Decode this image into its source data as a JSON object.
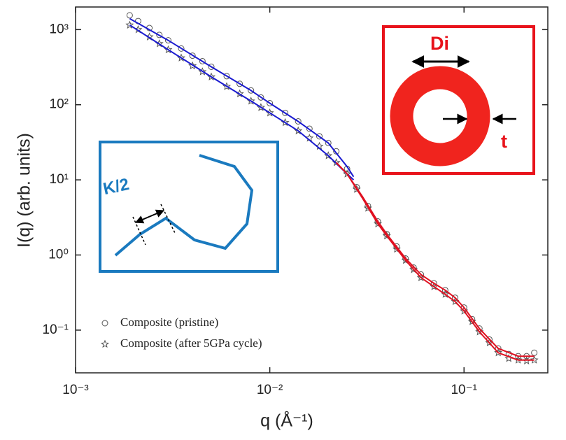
{
  "chart_data": {
    "type": "scatter",
    "y_label": "I(q) (arb. units)",
    "x_label": "q (Å⁻¹)",
    "xscale": "log",
    "yscale": "log",
    "xlim": [
      0.001,
      0.27
    ],
    "ylim": [
      0.027,
      2000
    ],
    "xticks": [
      {
        "value": 0.001,
        "label": "10⁻³"
      },
      {
        "value": 0.01,
        "label": "10⁻²"
      },
      {
        "value": 0.1,
        "label": "10⁻¹"
      }
    ],
    "yticks": [
      {
        "value": 0.1,
        "label": "10⁻¹"
      },
      {
        "value": 1,
        "label": "10⁰"
      },
      {
        "value": 10,
        "label": "10¹"
      },
      {
        "value": 100,
        "label": "10²"
      },
      {
        "value": 1000,
        "label": "10³"
      }
    ],
    "x": [
      0.0019,
      0.0021,
      0.0024,
      0.0027,
      0.003,
      0.0035,
      0.004,
      0.0045,
      0.005,
      0.006,
      0.007,
      0.008,
      0.009,
      0.01,
      0.012,
      0.014,
      0.016,
      0.018,
      0.02,
      0.022,
      0.025,
      0.028,
      0.032,
      0.036,
      0.04,
      0.045,
      0.05,
      0.055,
      0.06,
      0.07,
      0.08,
      0.09,
      0.1,
      0.11,
      0.12,
      0.135,
      0.15,
      0.17,
      0.19,
      0.21,
      0.23
    ],
    "series": [
      {
        "name": "Composite (pristine)",
        "marker": "circle",
        "color": "#555555",
        "values": [
          1550,
          1300,
          1050,
          850,
          720,
          560,
          450,
          380,
          320,
          240,
          190,
          155,
          125,
          105,
          78,
          60,
          48,
          38,
          31,
          24,
          14,
          8,
          4.5,
          2.8,
          1.9,
          1.3,
          0.9,
          0.68,
          0.55,
          0.42,
          0.34,
          0.27,
          0.2,
          0.14,
          0.105,
          0.075,
          0.057,
          0.048,
          0.045,
          0.045,
          0.05
        ]
      },
      {
        "name": "Composite (after 5GPa cycle)",
        "marker": "star",
        "color": "#555555",
        "values": [
          1150,
          1000,
          800,
          650,
          540,
          420,
          330,
          275,
          235,
          175,
          140,
          112,
          92,
          78,
          58,
          45,
          36,
          28,
          21,
          17,
          12,
          7.5,
          4.2,
          2.6,
          1.8,
          1.2,
          0.85,
          0.64,
          0.5,
          0.38,
          0.3,
          0.24,
          0.18,
          0.13,
          0.095,
          0.068,
          0.05,
          0.042,
          0.04,
          0.039,
          0.04
        ]
      }
    ],
    "fit_lines": [
      {
        "color": "#1a1ad0",
        "x": [
          0.0019,
          0.003,
          0.005,
          0.008,
          0.01,
          0.014,
          0.02,
          0.025,
          0.027
        ],
        "values": [
          1400,
          720,
          320,
          155,
          105,
          60,
          31,
          15,
          11
        ]
      },
      {
        "color": "#1a1ad0",
        "x": [
          0.0019,
          0.003,
          0.005,
          0.008,
          0.01,
          0.014,
          0.02,
          0.025,
          0.027
        ],
        "values": [
          1150,
          540,
          235,
          112,
          78,
          45,
          21,
          12,
          10
        ]
      },
      {
        "color": "#e01020",
        "x": [
          0.022,
          0.025,
          0.03,
          0.036,
          0.04,
          0.05,
          0.06,
          0.07,
          0.08,
          0.09,
          0.1,
          0.12,
          0.15,
          0.19,
          0.23
        ],
        "values": [
          17,
          12,
          6,
          2.8,
          1.9,
          0.9,
          0.55,
          0.42,
          0.34,
          0.27,
          0.2,
          0.105,
          0.057,
          0.045,
          0.045
        ]
      },
      {
        "color": "#e01020",
        "x": [
          0.022,
          0.025,
          0.03,
          0.036,
          0.04,
          0.05,
          0.06,
          0.07,
          0.08,
          0.09,
          0.1,
          0.12,
          0.15,
          0.19,
          0.23
        ],
        "values": [
          17,
          12,
          5.7,
          2.6,
          1.8,
          0.85,
          0.5,
          0.38,
          0.3,
          0.24,
          0.18,
          0.095,
          0.05,
          0.04,
          0.04
        ]
      }
    ],
    "annotations": [
      "Di",
      "t",
      "K/2"
    ]
  }
}
